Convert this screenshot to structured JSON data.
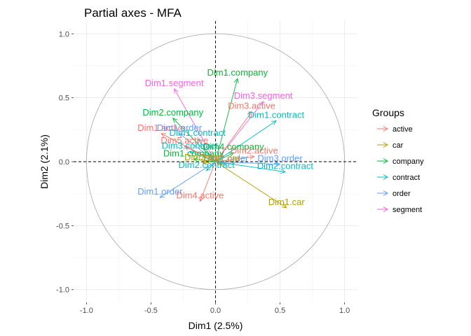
{
  "chart_data": {
    "type": "scatter",
    "title": "Partial axes - MFA",
    "xlabel": "Dim1 (2.5%)",
    "ylabel": "Dim2 (2.1%)",
    "xlim": [
      -1.1,
      1.1
    ],
    "ylim": [
      -1.1,
      1.1
    ],
    "xticks": [
      "-1.0",
      "-0.5",
      "0.0",
      "0.5",
      "1.0"
    ],
    "yticks": [
      "-1.0",
      "-0.5",
      "0.0",
      "0.5",
      "1.0"
    ],
    "xtick_values": [
      -1.0,
      -0.5,
      0.0,
      0.5,
      1.0
    ],
    "ytick_values": [
      -1.0,
      -0.5,
      0.0,
      0.5,
      1.0
    ],
    "grid": true,
    "unit_circle": true,
    "reference_lines": "dashed at x=0 and y=0",
    "legend": {
      "title": "Groups",
      "position": "right",
      "items": [
        {
          "label": "active",
          "color": "#F8766D"
        },
        {
          "label": "car",
          "color": "#B79F00"
        },
        {
          "label": "company",
          "color": "#00BA38"
        },
        {
          "label": "contract",
          "color": "#00BFC4"
        },
        {
          "label": "order",
          "color": "#619CFF"
        },
        {
          "label": "segment",
          "color": "#F564E3"
        }
      ]
    },
    "arrows": [
      {
        "label": "Dim1.company",
        "group": "company",
        "x": 0.17,
        "y": 0.65
      },
      {
        "label": "Dim1.segment",
        "group": "segment",
        "x": -0.32,
        "y": 0.57
      },
      {
        "label": "Dim3.segment",
        "group": "segment",
        "x": 0.37,
        "y": 0.47
      },
      {
        "label": "Dim2.company",
        "group": "company",
        "x": -0.33,
        "y": 0.34
      },
      {
        "label": "Dim3.active",
        "group": "active",
        "x": 0.28,
        "y": 0.39
      },
      {
        "label": "Dim1.contract",
        "group": "contract",
        "x": 0.47,
        "y": 0.32
      },
      {
        "label": "Dim1.active",
        "group": "active",
        "x": -0.42,
        "y": 0.22
      },
      {
        "label": "Dim1.order",
        "group": "order",
        "x": -0.28,
        "y": 0.22
      },
      {
        "label": "Dim1.contract",
        "group": "contract",
        "x": -0.14,
        "y": 0.18
      },
      {
        "label": "Dim5.active",
        "group": "active",
        "x": -0.24,
        "y": 0.12
      },
      {
        "label": "Dim3.contract",
        "group": "contract",
        "x": -0.2,
        "y": 0.08
      },
      {
        "label": "Dim4.company",
        "group": "company",
        "x": 0.14,
        "y": 0.07
      },
      {
        "label": "Dim2.active",
        "group": "active",
        "x": 0.3,
        "y": 0.04
      },
      {
        "label": "Dim1.company",
        "group": "company",
        "x": -0.17,
        "y": 0.02
      },
      {
        "label": "Dim2.order",
        "group": "order",
        "x": 0.08,
        "y": -0.02
      },
      {
        "label": "Dim1.car",
        "group": "car",
        "x": 0.05,
        "y": -0.02
      },
      {
        "label": "Dim2.car",
        "group": "car",
        "x": -0.1,
        "y": -0.01
      },
      {
        "label": "Dim3.order",
        "group": "order",
        "x": 0.5,
        "y": -0.02
      },
      {
        "label": "Dim2.contract",
        "group": "contract",
        "x": 0.54,
        "y": -0.08
      },
      {
        "label": "Dim2.contract",
        "group": "contract",
        "x": -0.07,
        "y": -0.07
      },
      {
        "label": "Dim1.order",
        "group": "order",
        "x": -0.43,
        "y": -0.28
      },
      {
        "label": "Dim4.active",
        "group": "active",
        "x": -0.12,
        "y": -0.31
      },
      {
        "label": "Dim1.car",
        "group": "car",
        "x": 0.55,
        "y": -0.36
      }
    ]
  }
}
